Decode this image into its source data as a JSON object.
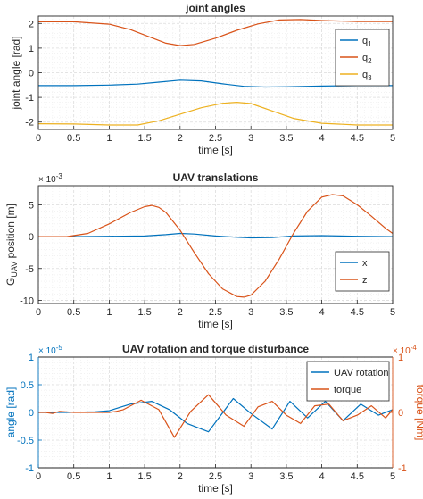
{
  "figure": {
    "background": "#ffffff",
    "text_color": "#262626",
    "grid_color": "#dcdcdc"
  },
  "chart_data": [
    {
      "type": "line",
      "title": "joint angles",
      "xlabel": "time [s]",
      "ylabel": "joint angle [rad]",
      "xlim": [
        0,
        5
      ],
      "ylim": [
        -2.3,
        2.3
      ],
      "xticks": [
        0,
        0.5,
        1,
        1.5,
        2,
        2.5,
        3,
        3.5,
        4,
        4.5,
        5
      ],
      "xtick_labels": [
        "0",
        "0.5",
        "1",
        "1.5",
        "2",
        "2.5",
        "3",
        "3.5",
        "4",
        "4.5",
        "5"
      ],
      "yticks": [
        -2,
        -1,
        0,
        1,
        2
      ],
      "ytick_labels": [
        "-2",
        "-1",
        "0",
        "1",
        "2"
      ],
      "grid": true,
      "minor_grid": true,
      "legend_position": "top-right",
      "series": [
        {
          "name": "q1",
          "legend": {
            "base": "q",
            "sub": "1"
          },
          "color": "#0072BD",
          "x": [
            0,
            0.5,
            1.0,
            1.4,
            1.7,
            2.0,
            2.3,
            2.6,
            2.9,
            3.2,
            3.5,
            4.0,
            4.5,
            5.0
          ],
          "y": [
            -0.52,
            -0.52,
            -0.5,
            -0.46,
            -0.38,
            -0.3,
            -0.33,
            -0.45,
            -0.55,
            -0.58,
            -0.57,
            -0.54,
            -0.52,
            -0.52
          ]
        },
        {
          "name": "q2",
          "legend": {
            "base": "q",
            "sub": "2"
          },
          "color": "#D95319",
          "x": [
            0,
            0.5,
            1.0,
            1.3,
            1.6,
            1.8,
            2.0,
            2.2,
            2.5,
            2.8,
            3.1,
            3.4,
            3.7,
            4.0,
            4.5,
            5.0
          ],
          "y": [
            2.07,
            2.07,
            1.97,
            1.75,
            1.42,
            1.2,
            1.1,
            1.15,
            1.4,
            1.72,
            1.98,
            2.14,
            2.16,
            2.12,
            2.08,
            2.08
          ]
        },
        {
          "name": "q3",
          "legend": {
            "base": "q",
            "sub": "3"
          },
          "color": "#EDB120",
          "x": [
            0,
            0.5,
            1.0,
            1.4,
            1.7,
            2.0,
            2.3,
            2.6,
            2.8,
            3.0,
            3.3,
            3.6,
            4.0,
            4.5,
            5.0
          ],
          "y": [
            -2.07,
            -2.08,
            -2.12,
            -2.12,
            -1.95,
            -1.68,
            -1.42,
            -1.24,
            -1.2,
            -1.25,
            -1.55,
            -1.85,
            -2.05,
            -2.12,
            -2.12
          ]
        }
      ]
    },
    {
      "type": "line",
      "title": "UAV translations",
      "xlabel": "time [s]",
      "ylabel": {
        "base": "G",
        "sub": "UAV",
        "rest": " position [m]"
      },
      "exponent_label": {
        "base": "× 10",
        "sup": "-3"
      },
      "xlim": [
        0,
        5
      ],
      "ylim": [
        -10.5,
        8
      ],
      "xticks": [
        0,
        0.5,
        1,
        1.5,
        2,
        2.5,
        3,
        3.5,
        4,
        4.5,
        5
      ],
      "xtick_labels": [
        "0",
        "0.5",
        "1",
        "1.5",
        "2",
        "2.5",
        "3",
        "3.5",
        "4",
        "4.5",
        "5"
      ],
      "yticks": [
        -10,
        -5,
        0,
        5
      ],
      "ytick_labels": [
        "-10",
        "-5",
        "0",
        "5"
      ],
      "grid": true,
      "minor_grid": true,
      "legend_position": "bottom-right",
      "series": [
        {
          "name": "x",
          "color": "#0072BD",
          "x": [
            0,
            0.5,
            1.0,
            1.5,
            1.8,
            2.0,
            2.2,
            2.5,
            2.8,
            3.0,
            3.3,
            3.6,
            4.0,
            4.5,
            5.0
          ],
          "y": [
            0,
            0,
            0.05,
            0.1,
            0.3,
            0.5,
            0.4,
            0.1,
            -0.1,
            -0.2,
            -0.15,
            0.1,
            0.15,
            0.05,
            0
          ]
        },
        {
          "name": "z",
          "color": "#D95319",
          "x": [
            0,
            0.4,
            0.7,
            1.0,
            1.3,
            1.5,
            1.6,
            1.7,
            1.8,
            2.0,
            2.2,
            2.4,
            2.6,
            2.8,
            2.9,
            3.0,
            3.2,
            3.4,
            3.6,
            3.8,
            4.0,
            4.15,
            4.3,
            4.5,
            4.7,
            4.9,
            5.0
          ],
          "y": [
            0,
            0,
            0.5,
            2.0,
            3.8,
            4.7,
            4.9,
            4.6,
            3.8,
            1.0,
            -2.5,
            -5.8,
            -8.2,
            -9.4,
            -9.5,
            -9.2,
            -7.0,
            -3.5,
            0.5,
            4.0,
            6.2,
            6.6,
            6.4,
            5.0,
            3.2,
            1.3,
            0.5
          ]
        }
      ]
    },
    {
      "type": "line",
      "title": "UAV rotation and torque disturbance",
      "xlabel": "time [s]",
      "ylabel_left": "angle [rad]",
      "ylabel_right": "torque [Nm]",
      "exponent_left": {
        "base": "× 10",
        "sup": "-5"
      },
      "exponent_right": {
        "base": "× 10",
        "sup": "-4"
      },
      "left_axis_color": "#0072BD",
      "right_axis_color": "#D95319",
      "xlim": [
        0,
        5
      ],
      "ylim_left": [
        -1,
        1
      ],
      "ylim_right": [
        -1,
        1
      ],
      "xticks": [
        0,
        0.5,
        1,
        1.5,
        2,
        2.5,
        3,
        3.5,
        4,
        4.5,
        5
      ],
      "xtick_labels": [
        "0",
        "0.5",
        "1",
        "1.5",
        "2",
        "2.5",
        "3",
        "3.5",
        "4",
        "4.5",
        "5"
      ],
      "yticks_left": [
        -1,
        -0.5,
        0,
        0.5,
        1
      ],
      "ytick_labels_left": [
        "-1",
        "-0.5",
        "0",
        "0.5",
        "1"
      ],
      "yticks_right": [
        -1,
        0,
        1
      ],
      "ytick_labels_right": [
        "-1",
        "0",
        "1"
      ],
      "grid": true,
      "minor_grid": true,
      "legend_position": "top-right",
      "series": [
        {
          "name": "UAV rotation",
          "axis": "left",
          "color": "#0072BD",
          "x": [
            0,
            0.4,
            0.8,
            1.0,
            1.3,
            1.6,
            1.85,
            2.1,
            2.4,
            2.75,
            3.0,
            3.3,
            3.55,
            3.8,
            4.05,
            4.3,
            4.55,
            4.8,
            5.0
          ],
          "y": [
            0,
            0,
            0.01,
            0.03,
            0.15,
            0.2,
            0.05,
            -0.2,
            -0.35,
            0.25,
            -0.02,
            -0.3,
            0.2,
            -0.1,
            0.2,
            -0.15,
            0.15,
            -0.05,
            0.05
          ]
        },
        {
          "name": "torque",
          "axis": "right",
          "color": "#D95319",
          "x": [
            0,
            0.1,
            0.2,
            0.3,
            0.5,
            1.0,
            1.1,
            1.2,
            1.45,
            1.7,
            1.92,
            2.15,
            2.4,
            2.65,
            2.9,
            3.1,
            3.3,
            3.5,
            3.7,
            3.9,
            4.1,
            4.3,
            4.5,
            4.7,
            4.9,
            5.0
          ],
          "y": [
            0,
            0,
            -0.02,
            0.02,
            0,
            0,
            0.02,
            0.05,
            0.22,
            0.05,
            -0.45,
            0.02,
            0.32,
            -0.05,
            -0.25,
            0.1,
            0.2,
            -0.05,
            -0.2,
            0.12,
            0.15,
            -0.15,
            -0.05,
            0.12,
            -0.1,
            0.05
          ]
        }
      ]
    }
  ]
}
